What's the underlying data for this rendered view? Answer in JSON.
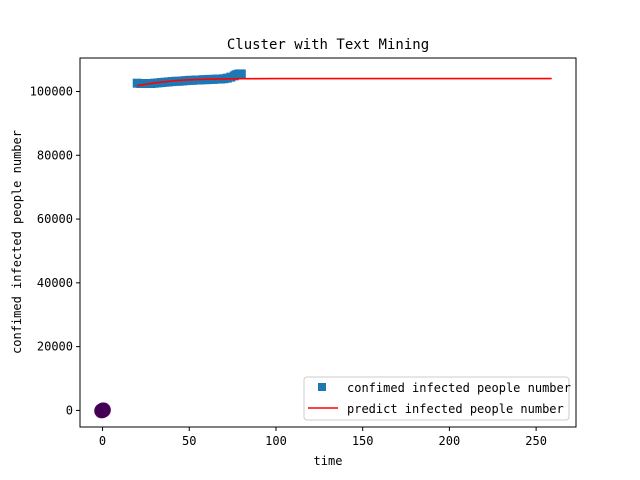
{
  "chart_data": {
    "type": "scatter",
    "title": "Cluster with Text Mining",
    "xlabel": "time",
    "ylabel": "confimed infected people number",
    "xlim": [
      -13,
      273
    ],
    "ylim": [
      -5200,
      110500
    ],
    "xticks": [
      0,
      50,
      100,
      150,
      200,
      250
    ],
    "yticks": [
      0,
      20000,
      40000,
      60000,
      80000,
      100000
    ],
    "grid": false,
    "legend_position": "lower-right",
    "colors": {
      "observed": "#1f77b4",
      "predict": "#ff0000",
      "cluster": "#440154"
    },
    "series": [
      {
        "name": "confimed infected people number",
        "kind": "markers",
        "marker": "square",
        "x": [
          20,
          22,
          24,
          26,
          28,
          30,
          32,
          34,
          36,
          38,
          40,
          42,
          44,
          46,
          48,
          50,
          52,
          54,
          56,
          58,
          60,
          62,
          64,
          66,
          68,
          70,
          72,
          74,
          76,
          77,
          78,
          79,
          80
        ],
        "y": [
          102600,
          102500,
          102500,
          102500,
          102500,
          102600,
          102700,
          102800,
          102900,
          103000,
          103100,
          103200,
          103200,
          103300,
          103400,
          103500,
          103500,
          103600,
          103600,
          103700,
          103700,
          103800,
          103800,
          103900,
          103900,
          104000,
          104200,
          104500,
          104900,
          105200,
          105400,
          105500,
          105500
        ]
      },
      {
        "name": "predict infected people number",
        "kind": "line",
        "x": [
          20,
          25,
          30,
          35,
          40,
          45,
          50,
          55,
          60,
          70,
          80,
          100,
          150,
          200,
          259
        ],
        "y": [
          101800,
          102300,
          102700,
          103000,
          103300,
          103500,
          103650,
          103750,
          103850,
          103950,
          104000,
          104050,
          104050,
          104050,
          104050
        ]
      },
      {
        "kind": "cluster-points",
        "marker": "circle",
        "x": [
          0,
          0.5,
          -0.5,
          0.3,
          -0.3
        ],
        "y": [
          0,
          150,
          -150,
          50,
          -50
        ]
      }
    ]
  }
}
